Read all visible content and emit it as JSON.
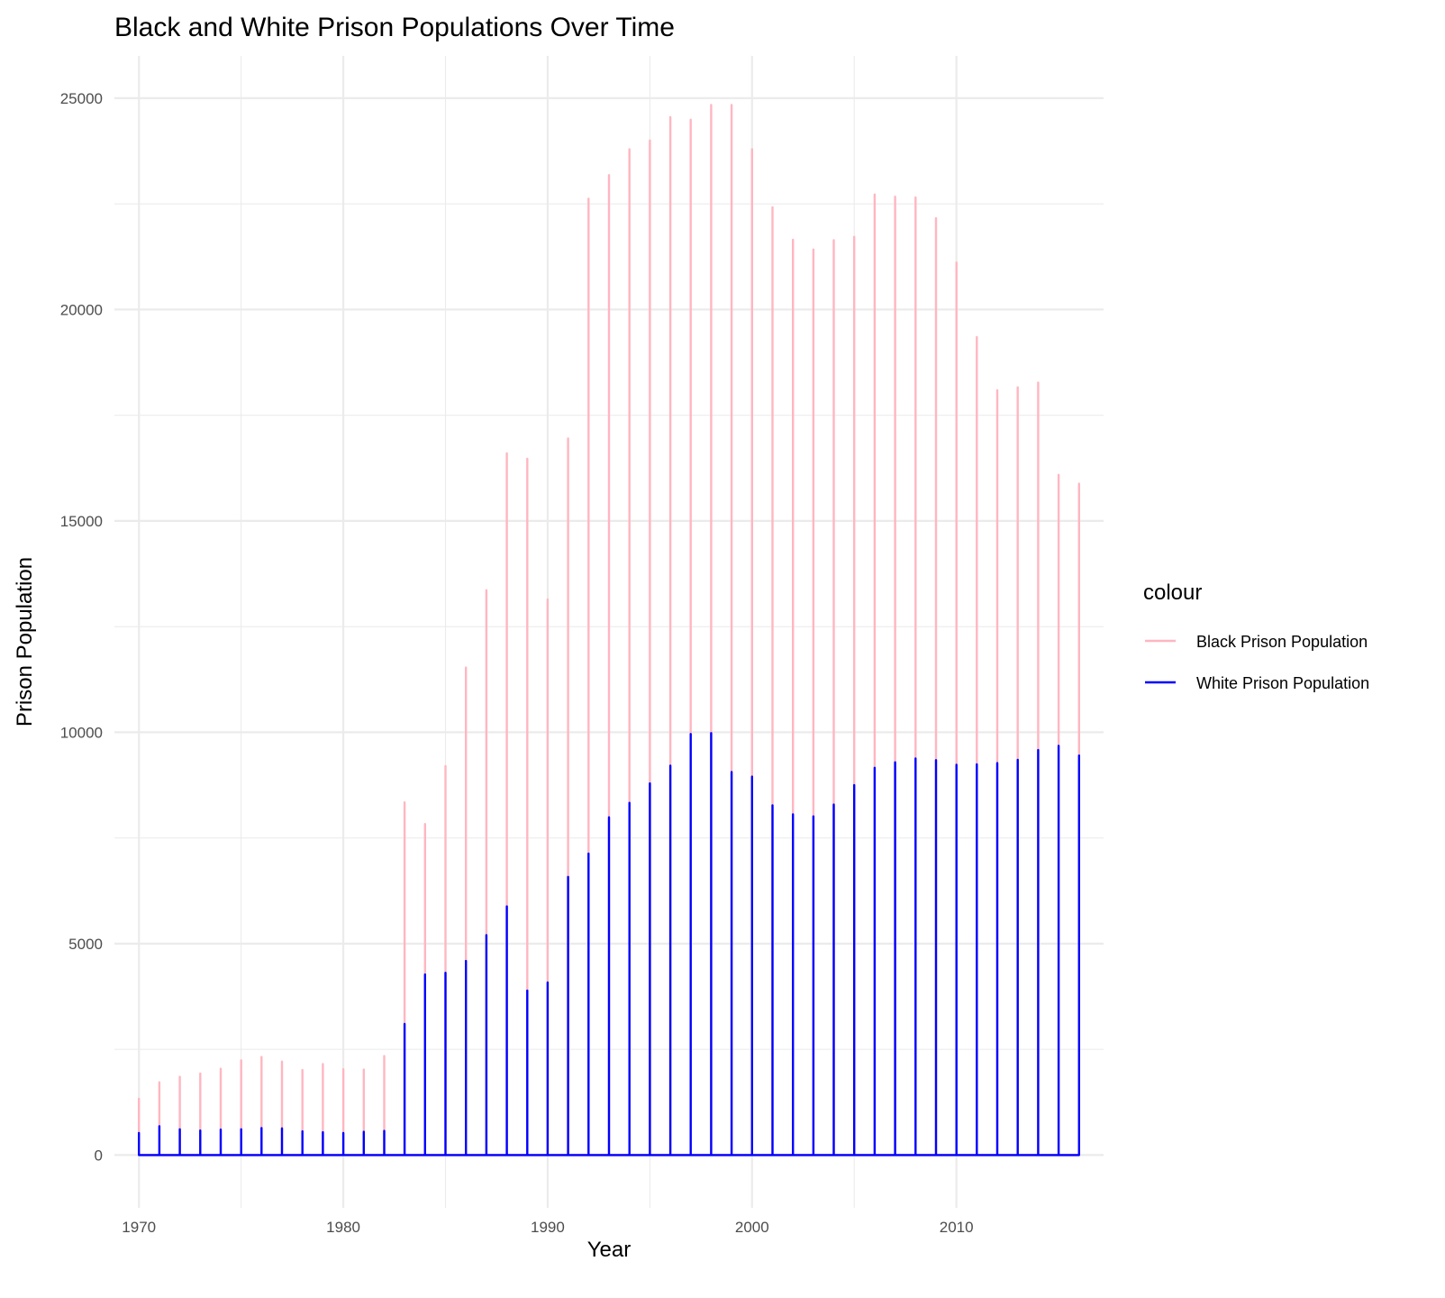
{
  "chart_data": {
    "type": "line",
    "title": "Black and White Prison Populations Over Time",
    "xlabel": "Year",
    "ylabel": "Prison Population",
    "xlim": [
      1968.8,
      2017.2
    ],
    "ylim": [
      -1250,
      26000
    ],
    "x_ticks": [
      1970,
      1980,
      1990,
      2000,
      2010
    ],
    "y_ticks": [
      0,
      5000,
      10000,
      15000,
      20000,
      25000
    ],
    "x_tick_labels": [
      "1970",
      "1980",
      "1990",
      "2000",
      "2010"
    ],
    "y_tick_labels": [
      "0",
      "5000",
      "10000",
      "15000",
      "20000",
      "25000"
    ],
    "grid": true,
    "legend": {
      "title": "colour",
      "position": "right"
    },
    "x": [
      1970,
      1971,
      1972,
      1973,
      1974,
      1975,
      1976,
      1977,
      1978,
      1979,
      1980,
      1981,
      1982,
      1983,
      1984,
      1985,
      1986,
      1987,
      1988,
      1989,
      1990,
      1991,
      1992,
      1993,
      1994,
      1995,
      1996,
      1997,
      1998,
      1999,
      2000,
      2001,
      2002,
      2003,
      2004,
      2005,
      2006,
      2007,
      2008,
      2009,
      2010,
      2011,
      2012,
      2013,
      2014,
      2015,
      2016
    ],
    "series": [
      {
        "name": "Black Prison Population",
        "color": "#FFB6C1",
        "max_values": [
          1330,
          1720,
          1850,
          1930,
          2040,
          2240,
          2320,
          2210,
          2010,
          2150,
          2030,
          2020,
          2340,
          8340,
          7830,
          9200,
          11530,
          13360,
          16600,
          16470,
          13140,
          16950,
          22620,
          23180,
          23790,
          24000,
          24550,
          24490,
          24840,
          24840,
          23790,
          22420,
          21650,
          21420,
          21640,
          21720,
          22720,
          22670,
          22650,
          22160,
          21110,
          19350,
          18090,
          18160,
          18270,
          16090,
          15880
        ],
        "min_values": [
          0,
          0,
          0,
          0,
          0,
          0,
          0,
          0,
          0,
          0,
          0,
          0,
          0,
          0,
          0,
          0,
          0,
          0,
          0,
          0,
          0,
          0,
          0,
          0,
          0,
          0,
          0,
          0,
          0,
          0,
          0,
          0,
          0,
          0,
          0,
          0,
          0,
          0,
          0,
          0,
          0,
          0,
          0,
          0,
          0,
          0,
          0
        ]
      },
      {
        "name": "White Prison Population",
        "color": "#0000FF",
        "max_values": [
          520,
          680,
          610,
          580,
          600,
          610,
          640,
          630,
          560,
          540,
          520,
          550,
          570,
          3100,
          4270,
          4310,
          4590,
          5200,
          5880,
          3890,
          4080,
          6580,
          7130,
          7990,
          8330,
          8790,
          9210,
          9960,
          9980,
          9060,
          8950,
          8270,
          8060,
          8010,
          8290,
          8750,
          9160,
          9290,
          9380,
          9340,
          9230,
          9240,
          9270,
          9350,
          9580,
          9680,
          9450
        ],
        "min_values": [
          0,
          0,
          0,
          0,
          0,
          0,
          0,
          0,
          0,
          0,
          0,
          0,
          0,
          0,
          0,
          0,
          0,
          0,
          0,
          0,
          0,
          0,
          0,
          0,
          0,
          0,
          0,
          0,
          0,
          0,
          0,
          0,
          0,
          0,
          0,
          0,
          0,
          0,
          0,
          0,
          0,
          0,
          0,
          0,
          0,
          0,
          0
        ]
      }
    ]
  }
}
